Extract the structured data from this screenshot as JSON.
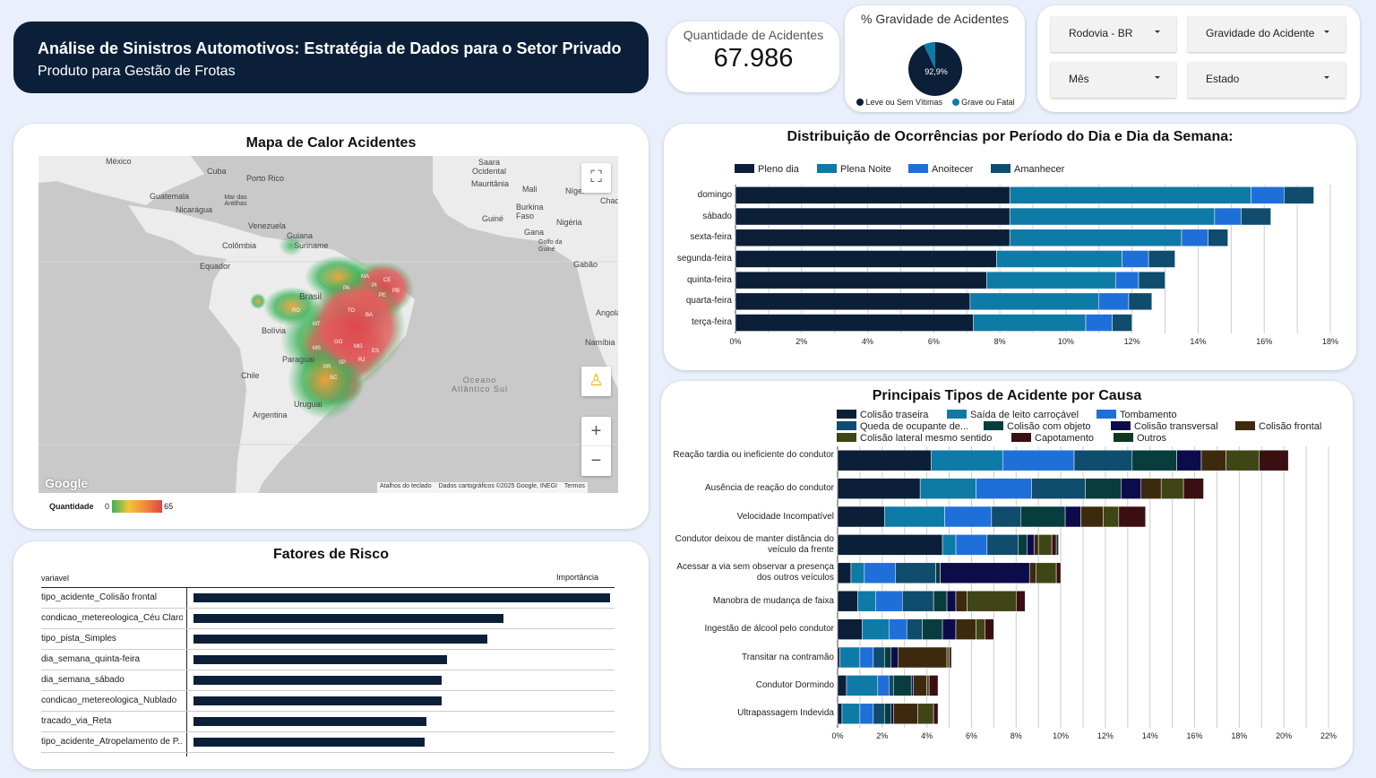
{
  "header": {
    "title": "Análise de Sinistros Automotivos: Estratégia de Dados para o Setor Privado",
    "subtitle": "Produto para Gestão de Frotas"
  },
  "kpi": {
    "label": "Quantidade de Acidentes",
    "value": "67.986"
  },
  "gravidade": {
    "title": "% Gravidade de Acidentes",
    "pct_label": "92,9%",
    "leve_fraction": 0.929,
    "legend": [
      {
        "label": "Leve ou Sem Vítimas",
        "color": "#0b1f38"
      },
      {
        "label": "Grave ou Fatal",
        "color": "#0e7aa6"
      }
    ]
  },
  "filters": [
    {
      "label": "Rodovia - BR"
    },
    {
      "label": "Gravidade do Acidente"
    },
    {
      "label": "Mês"
    },
    {
      "label": "Estado"
    }
  ],
  "map": {
    "title": "Mapa de Calor Acidentes",
    "labels": [
      "México",
      "Cuba",
      "Porto Rico",
      "Guatemala",
      "Mar das Antilhas",
      "Nicarágua",
      "Venezuela",
      "Guiana",
      "Suriname",
      "Colômbia",
      "Equador",
      "Brasil",
      "Bolívia",
      "Paraguai",
      "Chile",
      "Argentina",
      "Uruguai",
      "Oceano Atlântico Sul",
      "Saara Ocidental",
      "Mauritânia",
      "Mali",
      "Níger",
      "Burkina Faso",
      "Guiné",
      "Nigéria",
      "Gana",
      "Golfo da Guiné",
      "Gabão",
      "Angola",
      "Namíbia",
      "Chade"
    ],
    "state_labels": [
      "PA",
      "MA",
      "PI",
      "CE",
      "PB",
      "PE",
      "BA",
      "GO",
      "MG",
      "SP",
      "PR",
      "SC",
      "RJ",
      "MS",
      "MT",
      "RO",
      "TO",
      "ES"
    ],
    "google": "Google",
    "footer": [
      "Atalhos do teclado",
      "Dados cartográficos ©2025 Google, INEGI",
      "Termos"
    ],
    "zoom_in": "+",
    "zoom_out": "−",
    "legend_label": "Quantidade",
    "legend_min": "0",
    "legend_max": "65"
  },
  "risk": {
    "title": "Fatores de Risco",
    "col_var": "variavel",
    "col_imp": "Importância",
    "rows": [
      {
        "label": "tipo_acidente_Colisão frontal",
        "importance": 1.0
      },
      {
        "label": "condicao_metereologica_Céu Claro",
        "importance": 0.745
      },
      {
        "label": "tipo_pista_Simples",
        "importance": 0.705
      },
      {
        "label": "dia_semana_quinta-feira",
        "importance": 0.608
      },
      {
        "label": "dia_semana_sábado",
        "importance": 0.595
      },
      {
        "label": "condicao_metereologica_Nublado",
        "importance": 0.595
      },
      {
        "label": "tracado_via_Reta",
        "importance": 0.559
      },
      {
        "label": "tipo_acidente_Atropelamento de P...",
        "importance": 0.555
      }
    ]
  },
  "chart_data": [
    {
      "type": "bar",
      "orientation": "horizontal",
      "stacked": true,
      "title": "Distribuição de Ocorrências por Período do Dia e Dia da Semana:",
      "legend_position": "top-left",
      "categories": [
        "domingo",
        "sábado",
        "sexta-feira",
        "segunda-feira",
        "quinta-feira",
        "quarta-feira",
        "terça-feira"
      ],
      "x_ticks": [
        "0%",
        "2%",
        "4%",
        "6%",
        "8%",
        "10%",
        "12%",
        "14%",
        "16%",
        "18%"
      ],
      "xlim": [
        0,
        18
      ],
      "series": [
        {
          "name": "Pleno dia",
          "color": "#0b1f38",
          "values": [
            8.3,
            8.3,
            8.3,
            7.9,
            7.6,
            7.1,
            7.2
          ]
        },
        {
          "name": "Plena Noite",
          "color": "#0e7aa6",
          "values": [
            7.3,
            6.2,
            5.2,
            3.8,
            3.9,
            3.9,
            3.4
          ]
        },
        {
          "name": "Anoitecer",
          "color": "#1f6fd9",
          "values": [
            1.0,
            0.8,
            0.8,
            0.8,
            0.7,
            0.9,
            0.8
          ]
        },
        {
          "name": "Amanhecer",
          "color": "#0f4c6e",
          "values": [
            0.9,
            0.9,
            0.6,
            0.8,
            0.8,
            0.7,
            0.6
          ]
        }
      ]
    },
    {
      "type": "bar",
      "orientation": "horizontal",
      "stacked": true,
      "title": "Principais Tipos de Acidente por Causa",
      "legend_position": "top",
      "categories": [
        "Reação tardia ou ineficiente do condutor",
        "Ausência de reação do condutor",
        "Velocidade Incompatível",
        "Condutor deixou de manter distância do veículo da frente",
        "Acessar a via sem observar a presença dos outros veículos",
        "Manobra de mudança de faixa",
        "Ingestão de álcool pelo condutor",
        "Transitar na contramão",
        "Condutor Dormindo",
        "Ultrapassagem Indevida"
      ],
      "x_ticks": [
        "0%",
        "2%",
        "4%",
        "6%",
        "8%",
        "10%",
        "12%",
        "14%",
        "16%",
        "18%",
        "20%",
        "22%"
      ],
      "xlim": [
        0,
        22
      ],
      "series": [
        {
          "name": "Colisão traseira",
          "color": "#0b1f38",
          "values": [
            4.2,
            3.7,
            2.1,
            4.7,
            0.6,
            0.9,
            1.1,
            0.1,
            0.4,
            0.2
          ]
        },
        {
          "name": "Saída de leito carroçável",
          "color": "#0e7aa6",
          "values": [
            3.2,
            2.5,
            2.7,
            0.6,
            0.6,
            0.8,
            1.2,
            0.9,
            1.4,
            0.8
          ]
        },
        {
          "name": "Tombamento",
          "color": "#1f6fd9",
          "values": [
            3.2,
            2.5,
            2.1,
            1.4,
            1.4,
            1.2,
            0.8,
            0.6,
            0.5,
            0.6
          ]
        },
        {
          "name": "Queda de ocupante de...",
          "color": "#0f4c6e",
          "values": [
            2.6,
            2.4,
            1.3,
            1.4,
            1.8,
            1.4,
            0.7,
            0.5,
            0.2,
            0.5
          ]
        },
        {
          "name": "Colisão com objeto",
          "color": "#083d3d",
          "values": [
            2.0,
            1.6,
            2.0,
            0.4,
            0.2,
            0.6,
            0.9,
            0.3,
            0.8,
            0.3
          ]
        },
        {
          "name": "Colisão transversal",
          "color": "#0c0c4a",
          "values": [
            1.1,
            0.9,
            0.7,
            0.3,
            4.0,
            0.4,
            0.6,
            0.3,
            0.1,
            0.1
          ]
        },
        {
          "name": "Colisão frontal",
          "color": "#3d2a0e",
          "values": [
            1.1,
            0.9,
            1.0,
            0.2,
            0.3,
            0.5,
            0.9,
            2.2,
            0.6,
            1.1
          ]
        },
        {
          "name": "Colisão lateral mesmo sentido",
          "color": "#3f4514",
          "values": [
            1.5,
            1.0,
            0.7,
            0.6,
            0.9,
            2.2,
            0.4,
            0.1,
            0.1,
            0.7
          ]
        },
        {
          "name": "Capotamento",
          "color": "#3a0f12",
          "values": [
            1.3,
            0.9,
            1.2,
            0.2,
            0.2,
            0.4,
            0.4,
            0.1,
            0.4,
            0.2
          ]
        },
        {
          "name": "Outros",
          "color": "#0e3a1f",
          "values": [
            0,
            0,
            0,
            0.1,
            0,
            0,
            0,
            0,
            0,
            0
          ]
        }
      ]
    }
  ]
}
